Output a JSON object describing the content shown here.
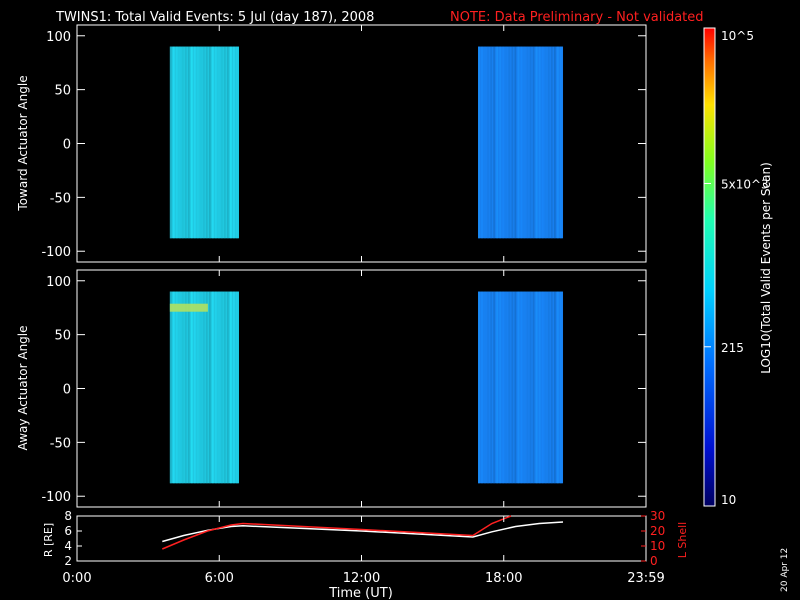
{
  "header": {
    "title": "TWINS1: Total Valid Events:  5 Jul (day 187), 2008",
    "note": "NOTE: Data Preliminary - Not validated",
    "note_color": "#ff2020",
    "stamp": "20 Apr 12"
  },
  "colorbar": {
    "label": "LOG10(Total Valid Events per Scan)",
    "ticks": [
      "10",
      "215",
      "5x10^3",
      "10^5"
    ],
    "tick_values": [
      10,
      215,
      5000,
      100000
    ],
    "scale": "log",
    "colormap": "rainbow (blue→cyan→green→yellow→red)"
  },
  "chart_data": [
    {
      "type": "heatmap",
      "ylabel": "Toward Actuator Angle",
      "xlim": [
        "0:00",
        "23:59"
      ],
      "ylim": [
        -110,
        110
      ],
      "yticks": [
        "100",
        "50",
        "0",
        "-50",
        "-100"
      ],
      "ytick_values": [
        100,
        50,
        0,
        -50,
        -100
      ],
      "blocks": [
        {
          "t_start": "3:55",
          "t_end": "6:50",
          "angle_range": [
            -88,
            90
          ],
          "dominant_color": "#20c8e0"
        },
        {
          "t_start": "16:55",
          "t_end": "20:30",
          "angle_range": [
            -88,
            90
          ],
          "dominant_color": "#1880f0"
        }
      ]
    },
    {
      "type": "heatmap",
      "ylabel": "Away Actuator Angle",
      "xlim": [
        "0:00",
        "23:59"
      ],
      "ylim": [
        -110,
        110
      ],
      "yticks": [
        "100",
        "50",
        "0",
        "-50",
        "-100"
      ],
      "ytick_values": [
        100,
        50,
        0,
        -50,
        -100
      ],
      "blocks": [
        {
          "t_start": "3:55",
          "t_end": "6:50",
          "angle_range": [
            -88,
            90
          ],
          "dominant_color": "#20c8e0",
          "hotspot_angle": 75,
          "hotspot_color": "#b0e060"
        },
        {
          "t_start": "16:55",
          "t_end": "20:30",
          "angle_range": [
            -88,
            90
          ],
          "dominant_color": "#1880f0"
        }
      ]
    },
    {
      "type": "line",
      "ylabel": "R [RE]",
      "y2label": "L Shell",
      "xlabel": "Time (UT)",
      "xticks": [
        "0:00",
        "6:00",
        "12:00",
        "18:00",
        "23:59"
      ],
      "xtick_hours": [
        0,
        6,
        12,
        18,
        24
      ],
      "ylim": [
        2,
        8
      ],
      "yticks": [
        "2",
        "4",
        "6",
        "8"
      ],
      "y2lim": [
        0,
        30
      ],
      "y2ticks": [
        "0",
        "10",
        "20",
        "30"
      ],
      "series": [
        {
          "axis": "left",
          "color": "#ffffff",
          "x": [
            3.6,
            4.5,
            5.5,
            6.5,
            7,
            12,
            16.7,
            17.5,
            18.5,
            19.5,
            20.5
          ],
          "y": [
            4.6,
            5.4,
            6.1,
            6.6,
            6.7,
            6.0,
            5.2,
            5.9,
            6.6,
            7.0,
            7.2
          ]
        },
        {
          "axis": "right",
          "color": "#ff2020",
          "x": [
            3.6,
            4.5,
            5.5,
            6.5,
            7,
            12,
            16.7,
            17.5,
            18.3
          ],
          "y": [
            8,
            14,
            20,
            24,
            25,
            21,
            17,
            25,
            31
          ]
        }
      ]
    }
  ]
}
